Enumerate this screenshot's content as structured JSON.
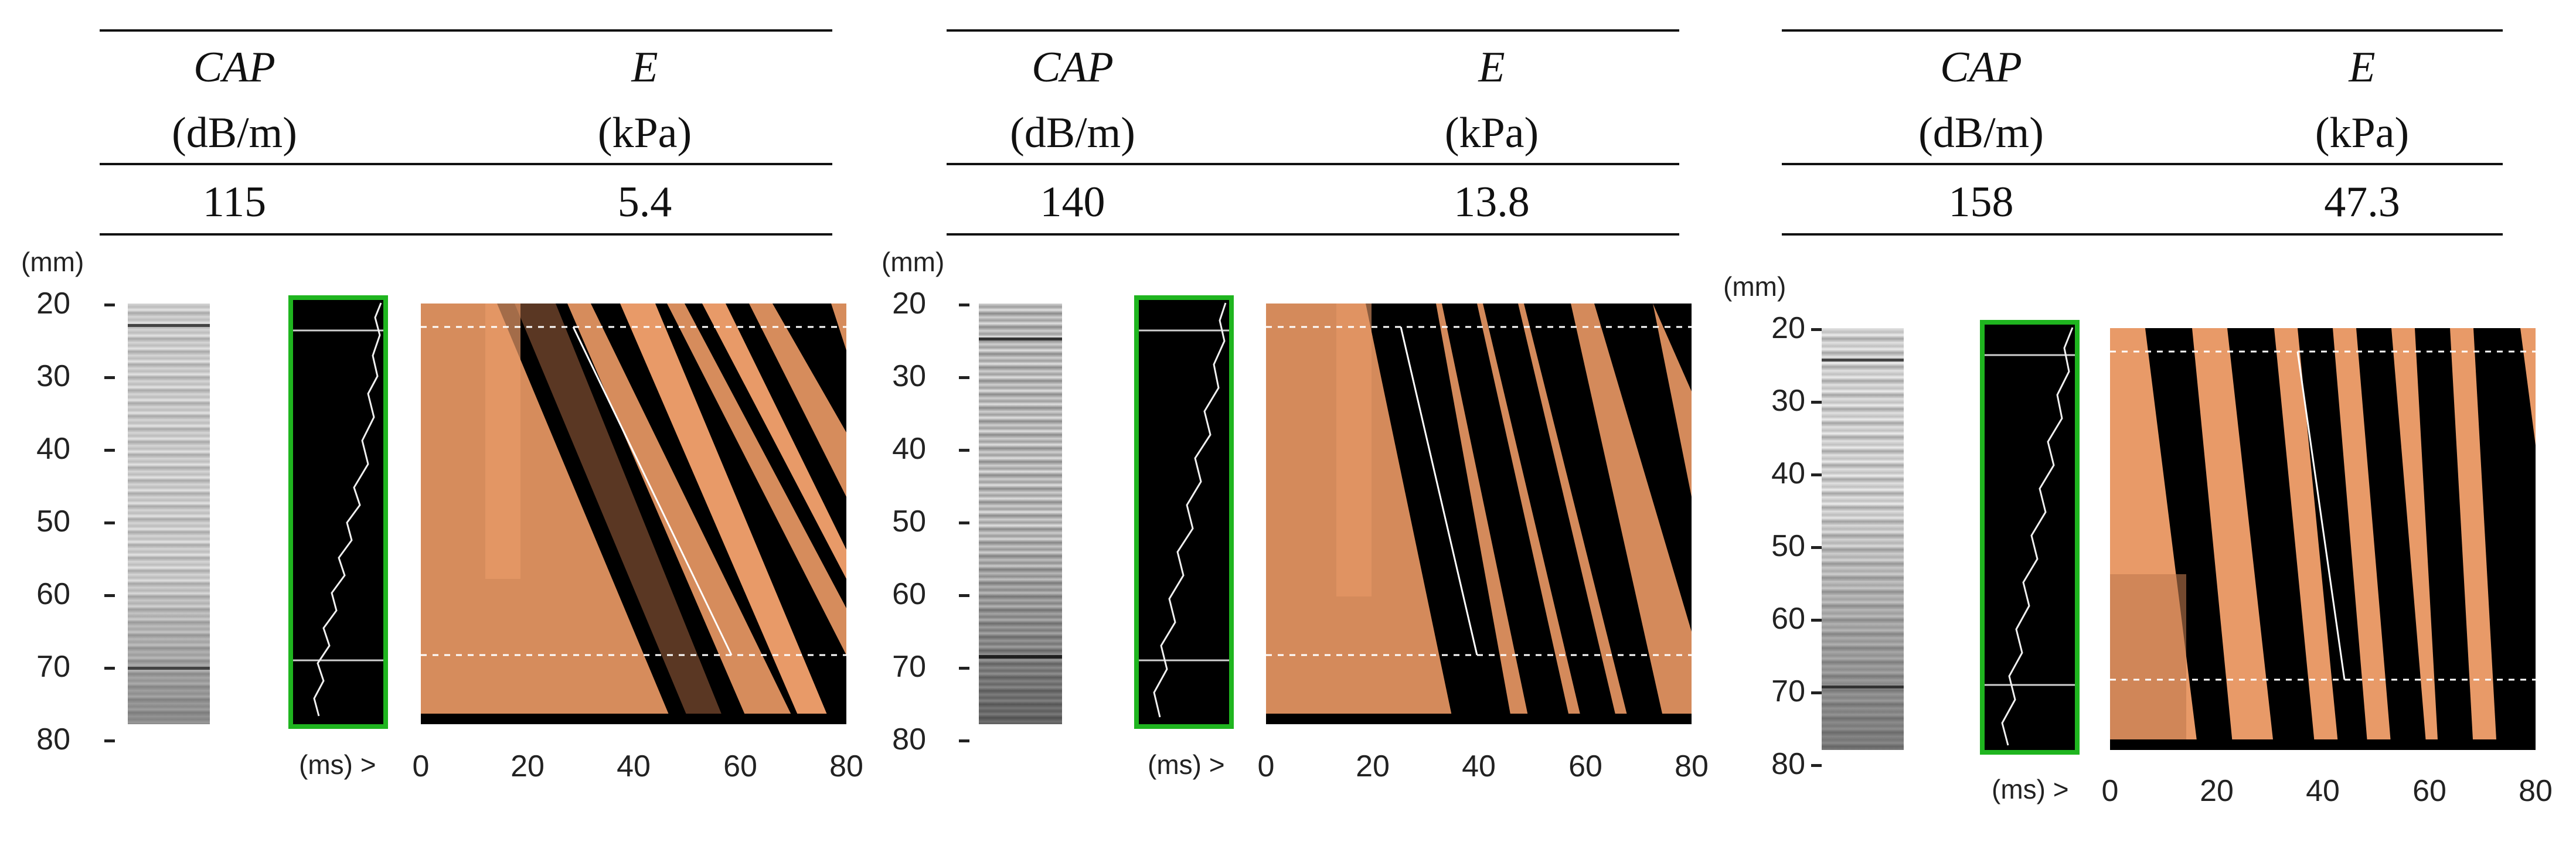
{
  "table_headers": {
    "cap_label": "CAP",
    "cap_unit": "(dB/m)",
    "e_label": "E",
    "e_unit": "(kPa)"
  },
  "panels": [
    {
      "cap_value": "115",
      "e_value": "5.4"
    },
    {
      "cap_value": "140",
      "e_value": "13.8"
    },
    {
      "cap_value": "158",
      "e_value": "47.3"
    }
  ],
  "depth_axis": {
    "unit": "(mm)",
    "ticks": [
      "20",
      "30",
      "40",
      "50",
      "60",
      "70",
      "80"
    ]
  },
  "time_axis": {
    "unit": "(ms) >",
    "ticks": [
      "0",
      "20",
      "40",
      "60",
      "80"
    ]
  },
  "colors": {
    "trace_border": "#1fb51f",
    "elastogram_light": "#e89a68",
    "elastogram_dark": "#000000",
    "guide_line": "#ffffff"
  }
}
